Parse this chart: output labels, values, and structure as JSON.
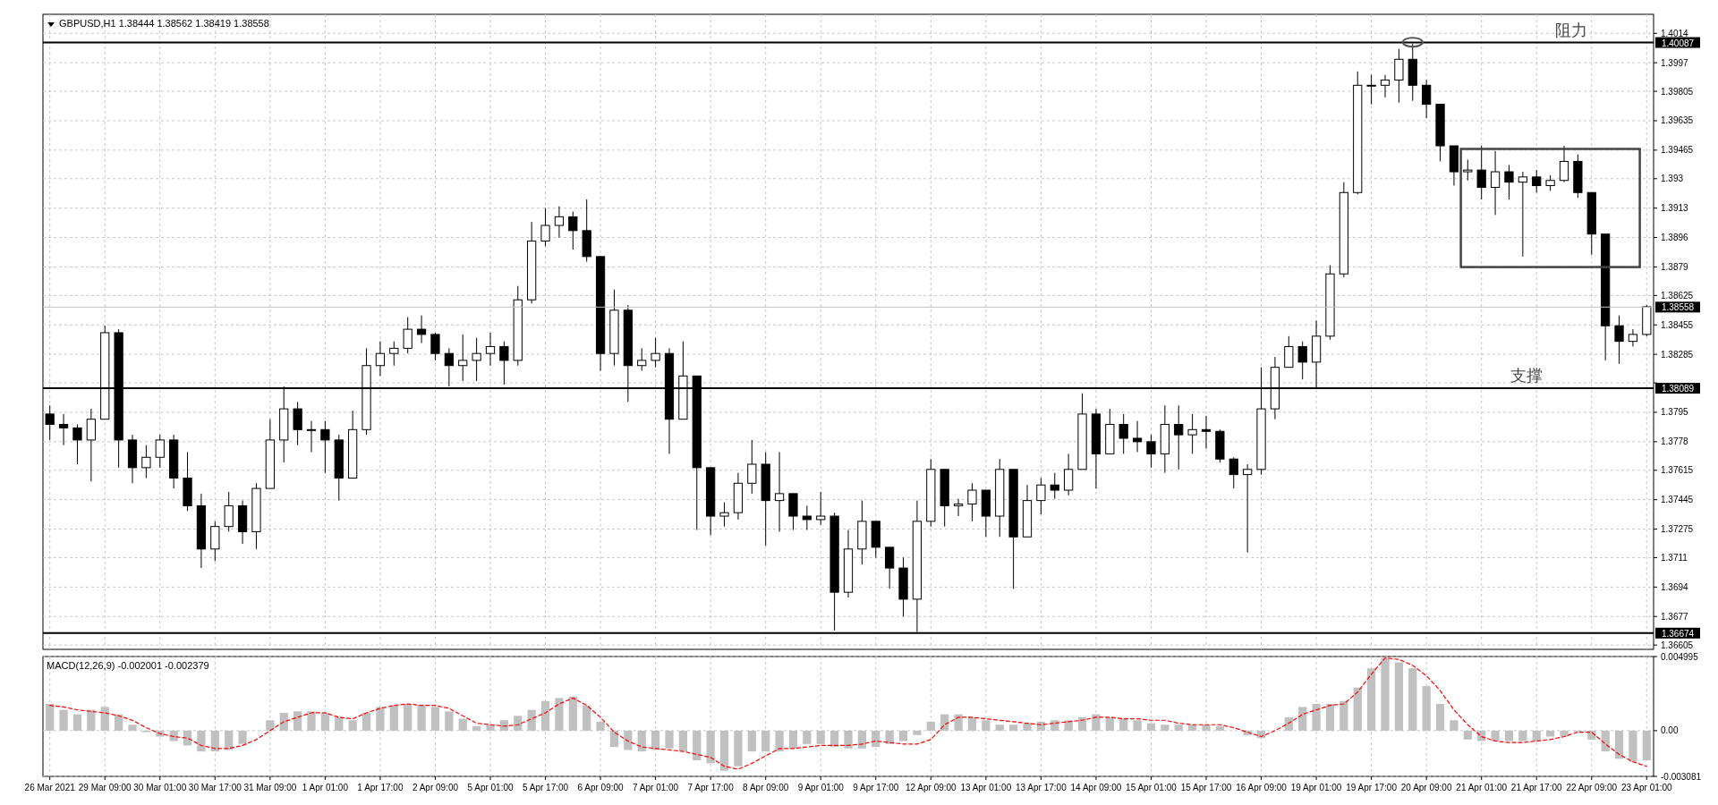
{
  "chart_data": [
    {
      "type": "candlestick",
      "title": "GBPUSD,H1  1.38444 1.38562 1.38419 1.38558",
      "color": "#000000",
      "grid": true,
      "categories": [
        null,
        null,
        null,
        null,
        null,
        null,
        null,
        null,
        null,
        null,
        null,
        null,
        null,
        null,
        null,
        null,
        null,
        null,
        null,
        null,
        null,
        null,
        null,
        null,
        null,
        null,
        null,
        null,
        null,
        null,
        null,
        null,
        null,
        null,
        null,
        null,
        null,
        null,
        null,
        null,
        null,
        null,
        null,
        null,
        null,
        null,
        null,
        null,
        null,
        null,
        null,
        null,
        null,
        null,
        null,
        null,
        null,
        null,
        null,
        null,
        null,
        null,
        null,
        null,
        null,
        null,
        null,
        null,
        null,
        null,
        null,
        null,
        null,
        null,
        null,
        null,
        null,
        null,
        null,
        null,
        null,
        null,
        null,
        null,
        null,
        null,
        null,
        null,
        null,
        null,
        null,
        null,
        null,
        null,
        null,
        null,
        null,
        null,
        null,
        null,
        null,
        null,
        null,
        null,
        null,
        null,
        null,
        null,
        null,
        null,
        null,
        null,
        null,
        null,
        null,
        null,
        null
      ],
      "ohlc": [
        [
          1.3794,
          1.3799,
          1.3779,
          1.3788
        ],
        [
          1.3788,
          1.3794,
          1.3776,
          1.3786
        ],
        [
          1.3786,
          1.3788,
          1.3765,
          1.3779
        ],
        [
          1.3779,
          1.3797,
          1.3755,
          1.3791
        ],
        [
          1.3791,
          1.3845,
          1.3791,
          1.3841
        ],
        [
          1.3841,
          1.3843,
          1.3763,
          1.3779
        ],
        [
          1.3779,
          1.3782,
          1.3754,
          1.3763
        ],
        [
          1.3763,
          1.3776,
          1.3757,
          1.3769
        ],
        [
          1.3769,
          1.3782,
          1.3763,
          1.3779
        ],
        [
          1.3779,
          1.3782,
          1.3751,
          1.3757
        ],
        [
          1.3757,
          1.3772,
          1.3738,
          1.3741
        ],
        [
          1.3741,
          1.3748,
          1.3705,
          1.3716
        ],
        [
          1.3716,
          1.3732,
          1.3709,
          1.3729
        ],
        [
          1.3729,
          1.3749,
          1.3726,
          1.3741
        ],
        [
          1.3741,
          1.3744,
          1.3719,
          1.3726
        ],
        [
          1.3726,
          1.3754,
          1.3716,
          1.3751
        ],
        [
          1.3751,
          1.3791,
          1.3751,
          1.3779
        ],
        [
          1.3779,
          1.381,
          1.3766,
          1.3797
        ],
        [
          1.3797,
          1.3801,
          1.3776,
          1.3785
        ],
        [
          1.3785,
          1.379,
          1.3772,
          1.3785
        ],
        [
          1.3785,
          1.379,
          1.376,
          1.3779
        ],
        [
          1.3779,
          1.3782,
          1.3744,
          1.3757
        ],
        [
          1.3757,
          1.3796,
          1.3757,
          1.3785
        ],
        [
          1.3785,
          1.3832,
          1.3782,
          1.3822
        ],
        [
          1.3822,
          1.3836,
          1.3816,
          1.3829
        ],
        [
          1.3829,
          1.3836,
          1.3822,
          1.3832
        ],
        [
          1.3832,
          1.385,
          1.3829,
          1.3843
        ],
        [
          1.3843,
          1.3851,
          1.3835,
          1.384
        ],
        [
          1.384,
          1.3841,
          1.3825,
          1.3829
        ],
        [
          1.3829,
          1.3832,
          1.381,
          1.3822
        ],
        [
          1.3822,
          1.384,
          1.3813,
          1.3825
        ],
        [
          1.3825,
          1.3838,
          1.3813,
          1.3829
        ],
        [
          1.3829,
          1.3841,
          1.3822,
          1.3833
        ],
        [
          1.3833,
          1.3836,
          1.3811,
          1.3825
        ],
        [
          1.3825,
          1.3868,
          1.3822,
          1.386
        ],
        [
          1.386,
          1.3905,
          1.3858,
          1.3894
        ],
        [
          1.3894,
          1.3913,
          1.3891,
          1.3903
        ],
        [
          1.3903,
          1.3914,
          1.3896,
          1.3908
        ],
        [
          1.3908,
          1.3911,
          1.3889,
          1.39
        ],
        [
          1.39,
          1.3918,
          1.3882,
          1.3885
        ],
        [
          1.3885,
          1.3885,
          1.3819,
          1.3829
        ],
        [
          1.3829,
          1.3866,
          1.3822,
          1.3854
        ],
        [
          1.3854,
          1.3857,
          1.3801,
          1.3822
        ],
        [
          1.3822,
          1.3832,
          1.3819,
          1.3825
        ],
        [
          1.3825,
          1.3838,
          1.3821,
          1.3829
        ],
        [
          1.3829,
          1.3832,
          1.3771,
          1.3791
        ],
        [
          1.3791,
          1.3836,
          1.3791,
          1.3816
        ],
        [
          1.3816,
          1.3816,
          1.3727,
          1.3763
        ],
        [
          1.3763,
          1.3763,
          1.3724,
          1.3735
        ],
        [
          1.3735,
          1.3743,
          1.3729,
          1.3737
        ],
        [
          1.3737,
          1.376,
          1.3733,
          1.3754
        ],
        [
          1.3754,
          1.3779,
          1.3748,
          1.3765
        ],
        [
          1.3765,
          1.3772,
          1.3718,
          1.3744
        ],
        [
          1.3744,
          1.3772,
          1.3726,
          1.3748
        ],
        [
          1.3748,
          1.3748,
          1.3727,
          1.3735
        ],
        [
          1.3735,
          1.3741,
          1.3727,
          1.3733
        ],
        [
          1.3733,
          1.3749,
          1.373,
          1.3735
        ],
        [
          1.3735,
          1.3737,
          1.3669,
          1.3691
        ],
        [
          1.3691,
          1.3727,
          1.3688,
          1.3716
        ],
        [
          1.3716,
          1.3744,
          1.3707,
          1.3732
        ],
        [
          1.3732,
          1.3732,
          1.3711,
          1.3717
        ],
        [
          1.3717,
          1.3717,
          1.3693,
          1.3705
        ],
        [
          1.3705,
          1.3711,
          1.3677,
          1.3687
        ],
        [
          1.3687,
          1.3744,
          1.3668,
          1.3732
        ],
        [
          1.3732,
          1.3768,
          1.3729,
          1.3762
        ],
        [
          1.3762,
          1.3762,
          1.3729,
          1.3741
        ],
        [
          1.3741,
          1.3745,
          1.3735,
          1.3742
        ],
        [
          1.3742,
          1.3754,
          1.3732,
          1.375
        ],
        [
          1.375,
          1.375,
          1.3723,
          1.3735
        ],
        [
          1.3735,
          1.3768,
          1.3723,
          1.3762
        ],
        [
          1.3762,
          1.3762,
          1.3693,
          1.3723
        ],
        [
          1.3723,
          1.3753,
          1.3723,
          1.3744
        ],
        [
          1.3744,
          1.3757,
          1.3736,
          1.3753
        ],
        [
          1.3753,
          1.376,
          1.3745,
          1.375
        ],
        [
          1.375,
          1.3771,
          1.3747,
          1.3762
        ],
        [
          1.3762,
          1.3806,
          1.3762,
          1.3794
        ],
        [
          1.3794,
          1.3797,
          1.3751,
          1.3771
        ],
        [
          1.3771,
          1.3797,
          1.3771,
          1.3788
        ],
        [
          1.3788,
          1.3794,
          1.3771,
          1.378
        ],
        [
          1.378,
          1.379,
          1.3772,
          1.3778
        ],
        [
          1.3778,
          1.3782,
          1.3763,
          1.3771
        ],
        [
          1.3771,
          1.3799,
          1.376,
          1.3788
        ],
        [
          1.3788,
          1.3799,
          1.3762,
          1.3782
        ],
        [
          1.3782,
          1.3794,
          1.3771,
          1.3785
        ],
        [
          1.3785,
          1.3793,
          1.3774,
          1.3784
        ],
        [
          1.3784,
          1.3785,
          1.3766,
          1.3768
        ],
        [
          1.3768,
          1.3769,
          1.3751,
          1.3759
        ],
        [
          1.3759,
          1.3765,
          1.3714,
          1.3762
        ],
        [
          1.3762,
          1.3821,
          1.3759,
          1.3797
        ],
        [
          1.3797,
          1.3827,
          1.3791,
          1.3821
        ],
        [
          1.3821,
          1.3839,
          1.3821,
          1.3833
        ],
        [
          1.3833,
          1.3836,
          1.3814,
          1.3824
        ],
        [
          1.3824,
          1.3848,
          1.3809,
          1.3839
        ],
        [
          1.3839,
          1.388,
          1.3837,
          1.3875
        ],
        [
          1.3875,
          1.3928,
          1.3873,
          1.3922
        ],
        [
          1.3922,
          1.3992,
          1.3921,
          1.3984
        ],
        [
          1.3984,
          1.399,
          1.3973,
          1.3984
        ],
        [
          1.3984,
          1.399,
          1.3977,
          1.3987
        ],
        [
          1.3987,
          1.4005,
          1.3974,
          1.3999
        ],
        [
          1.3999,
          1.4008,
          1.3975,
          1.3984
        ],
        [
          1.3984,
          1.3987,
          1.3965,
          1.3973
        ],
        [
          1.3973,
          1.3973,
          1.394,
          1.3949
        ],
        [
          1.3949,
          1.3949,
          1.3926,
          1.3934
        ],
        [
          1.3934,
          1.3941,
          1.3929,
          1.3935
        ],
        [
          1.3935,
          1.3949,
          1.3918,
          1.3925
        ],
        [
          1.3925,
          1.3946,
          1.3909,
          1.3934
        ],
        [
          1.3934,
          1.3938,
          1.3918,
          1.3928
        ],
        [
          1.3928,
          1.3934,
          1.3885,
          1.3931
        ],
        [
          1.3931,
          1.3935,
          1.3922,
          1.3926
        ],
        [
          1.3926,
          1.3932,
          1.3923,
          1.3929
        ],
        [
          1.3929,
          1.3949,
          1.3928,
          1.394
        ],
        [
          1.394,
          1.3944,
          1.3919,
          1.3922
        ],
        [
          1.3922,
          1.3922,
          1.3886,
          1.3898
        ],
        [
          1.3898,
          1.3898,
          1.3825,
          1.3845
        ],
        [
          1.3845,
          1.3851,
          1.3823,
          1.3836
        ],
        [
          1.3836,
          1.3843,
          1.3833,
          1.384
        ],
        [
          1.384,
          1.3857,
          1.3839,
          1.3856
        ]
      ],
      "ylim": [
        1.3658,
        1.4025
      ],
      "yticks": [
        1.4014,
        1.3997,
        {
          "value": 1.39805,
          "label": "1.39805"
        },
        1.39635,
        1.39465,
        1.393,
        1.3913,
        1.3896,
        1.3879,
        1.38625,
        1.38455,
        1.38285,
        {
          "value": 1.3812,
          "label": null
        },
        1.3795,
        1.3778,
        1.37615,
        1.37445,
        1.37275,
        1.3711,
        1.3694,
        1.3677,
        1.36605
      ],
      "ref_lines": [
        {
          "axis": "y",
          "value": 1.40087,
          "label": "1.40087",
          "color": "#000000"
        },
        {
          "axis": "y",
          "value": 1.38089,
          "label": "1.38089",
          "color": "#000000"
        },
        {
          "axis": "y",
          "value": 1.36674,
          "label": "1.36674",
          "color": "#000000"
        },
        {
          "axis": "y",
          "value": 1.38558,
          "label": "1.38558",
          "color": "#c0c0c0"
        }
      ],
      "annotations": [
        {
          "text": "阻力",
          "y": 1.40087
        },
        {
          "text": "支撑",
          "y": 1.38089
        }
      ]
    },
    {
      "type": "bar",
      "title": "MACD(12,26,9) -0.002001 -0.002379",
      "grid": true,
      "categories": [
        "26 Mar 2021",
        null,
        null,
        null,
        "29 Mar 09:00",
        null,
        null,
        null,
        "30 Mar 01:00",
        null,
        null,
        null,
        "30 Mar 17:00",
        null,
        null,
        null,
        "31 Mar 09:00",
        null,
        null,
        null,
        "1 Apr 01:00",
        null,
        null,
        null,
        "1 Apr 17:00",
        null,
        null,
        null,
        "2 Apr 09:00",
        null,
        null,
        null,
        "5 Apr 01:00",
        null,
        null,
        null,
        "5 Apr 17:00",
        null,
        null,
        null,
        "6 Apr 09:00",
        null,
        null,
        null,
        "7 Apr 01:00",
        null,
        null,
        null,
        "7 Apr 17:00",
        null,
        null,
        null,
        "8 Apr 09:00",
        null,
        null,
        null,
        "9 Apr 01:00",
        null,
        null,
        null,
        "9 Apr 17:00",
        null,
        null,
        null,
        "12 Apr 09:00",
        null,
        null,
        null,
        "13 Apr 01:00",
        null,
        null,
        null,
        "13 Apr 17:00",
        null,
        null,
        null,
        "14 Apr 09:00",
        null,
        null,
        null,
        "15 Apr 01:00",
        null,
        null,
        null,
        "15 Apr 17:00",
        null,
        null,
        null,
        "16 Apr 09:00",
        null,
        null,
        null,
        "19 Apr 01:00",
        null,
        null,
        null,
        "19 Apr 17:00",
        null,
        null,
        null,
        "20 Apr 09:00",
        null,
        null,
        null,
        "21 Apr 01:00",
        null,
        null,
        null,
        "21 Apr 17:00",
        null,
        null,
        null,
        "22 Apr 09:00",
        null,
        null,
        null,
        "23 Apr 01:00"
      ],
      "ylim": [
        -0.003081,
        0.004995
      ],
      "yticks": [
        0.004995,
        {
          "value": 0,
          "label": "0.00"
        },
        -0.003081
      ],
      "series": [
        {
          "color": "#c0c0c0",
          "values": [
            0.0018,
            0.0014,
            0.0011,
            0.0014,
            0.0016,
            0.0011,
            0.0004,
            -0.0001,
            -0.0004,
            -0.0007,
            -0.001,
            -0.0014,
            -0.0014,
            -0.0013,
            -0.0009,
            0,
            0.0007,
            0.0012,
            0.0013,
            0.0013,
            0.0012,
            0.0009,
            0.0007,
            0.0012,
            0.0016,
            0.0017,
            0.0018,
            0.0017,
            0.0016,
            0.0013,
            0.0008,
            0.0003,
            0.0004,
            0.0007,
            0.001,
            0.0014,
            0.002,
            0.0022,
            0.0023,
            0.0017,
            0.0006,
            -0.0011,
            -0.0013,
            -0.0014,
            -0.0013,
            -0.0012,
            -0.0014,
            -0.002,
            -0.0022,
            -0.0027,
            -0.0024,
            -0.0014,
            -0.0014,
            -0.0014,
            -0.0012,
            -0.0009,
            -0.0009,
            -0.0011,
            -0.0012,
            -0.0012,
            -0.0011,
            -0.0009,
            -0.0007,
            -0.0003,
            0.0006,
            0.0011,
            0.0011,
            0.0009,
            0.0007,
            0.0004,
            0.0004,
            0.0005,
            0.0006,
            0.0007,
            0.0007,
            0.0009,
            0.0011,
            0.0009,
            0.0008,
            0.0007,
            0.0005,
            0.0004,
            0.0004,
            0.0004,
            0.0004,
            0.0003,
            null,
            -0.0003,
            -0.0005,
            null,
            0.0009,
            0.0016,
            0.0018,
            0.0018,
            0.002,
            0.0029,
            0.0042,
            0.0049,
            0.0046,
            0.0042,
            0.003,
            0.0018,
            0.0007,
            -0.0006,
            -0.0007,
            -0.0007,
            -0.0007,
            -0.0007,
            -0.0007,
            -0.0004,
            -0.0004,
            -0.0001,
            -0.0006,
            -0.0014,
            -0.0019,
            -0.0021,
            -0.002
          ]
        },
        {
          "type": "line",
          "color": "#ff0000",
          "line_style": "dashed",
          "values": [
            0.0017,
            0.0016,
            0.0014,
            0.0013,
            0.0012,
            0.001,
            0.0007,
            0.0002,
            -0.0002,
            -0.0004,
            -0.0005,
            -0.001,
            -0.0012,
            -0.0012,
            -0.001,
            -0.0006,
            0,
            0.0006,
            0.0009,
            0.0012,
            0.0012,
            0.0009,
            0.0008,
            0.0012,
            0.0015,
            0.0017,
            0.0018,
            0.0017,
            0.0017,
            0.0015,
            0.001,
            0.0005,
            0.0004,
            0.0003,
            0.0004,
            0.0008,
            0.0012,
            0.0018,
            0.0022,
            0.0017,
            0.0009,
            -0.0001,
            -0.0007,
            -0.0011,
            -0.0012,
            -0.0013,
            -0.0014,
            -0.0016,
            -0.0018,
            -0.0024,
            -0.0026,
            -0.0022,
            -0.0017,
            -0.0012,
            -0.0012,
            -0.0011,
            -0.001,
            -0.001,
            -0.001,
            -0.0009,
            -0.0007,
            -0.0008,
            -0.0009,
            -0.0009,
            -0.0006,
            0.0004,
            0.0009,
            0.0009,
            0.0008,
            0.0007,
            0.0006,
            0.0005,
            0.0004,
            0.0005,
            0.0006,
            0.0007,
            0.0009,
            0.0009,
            0.0008,
            0.0008,
            0.0007,
            0.0007,
            0.0005,
            0.0004,
            0.0004,
            0.0004,
            0.0002,
            -0.0001,
            -0.0004,
            0,
            0.0005,
            0.0011,
            0.0014,
            0.0017,
            0.0018,
            0.0026,
            0.0038,
            0.0049,
            0.0048,
            0.0044,
            0.0037,
            0.0027,
            0.0014,
            0.0004,
            -0.0004,
            -0.0007,
            -0.0008,
            -0.0008,
            -0.0007,
            -0.0006,
            -0.0004,
            -0.0001,
            -0.0001,
            -0.0009,
            -0.0016,
            -0.0021,
            -0.0024
          ]
        }
      ]
    }
  ]
}
